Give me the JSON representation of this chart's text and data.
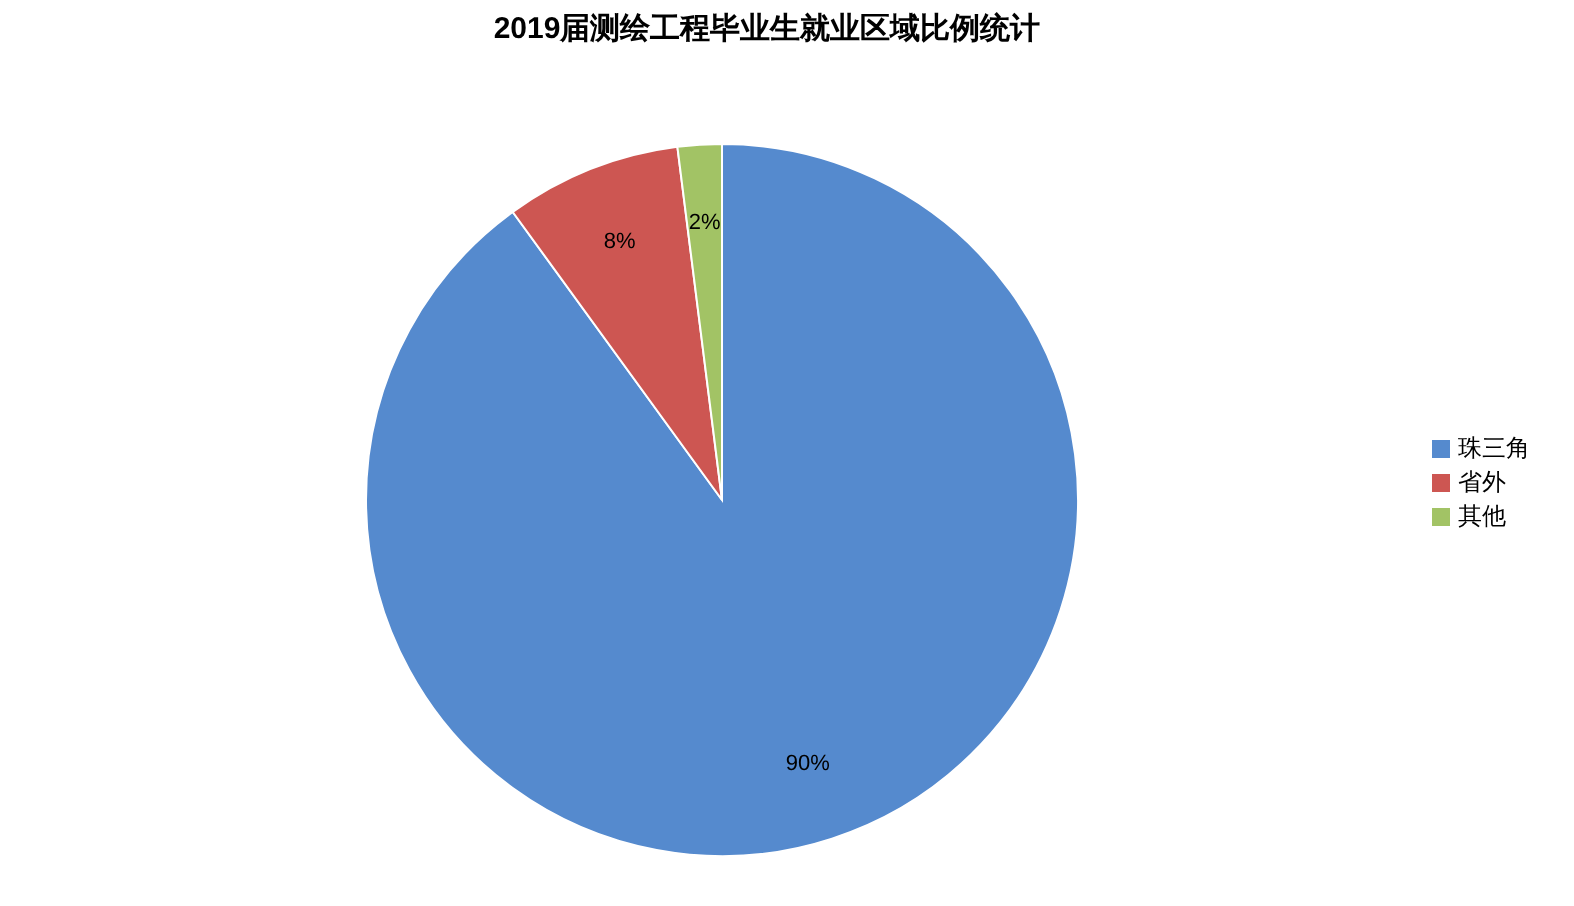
{
  "chart_data": {
    "type": "pie",
    "title": "2019届测绘工程毕业生就业区域比例统计",
    "categories": [
      "珠三角",
      "省外",
      "其他"
    ],
    "values": [
      90,
      8,
      2
    ],
    "colors": [
      "#558ace",
      "#cd5652",
      "#a2c365"
    ],
    "value_labels": [
      "90%",
      "8%",
      "2%"
    ],
    "legend": "right"
  }
}
